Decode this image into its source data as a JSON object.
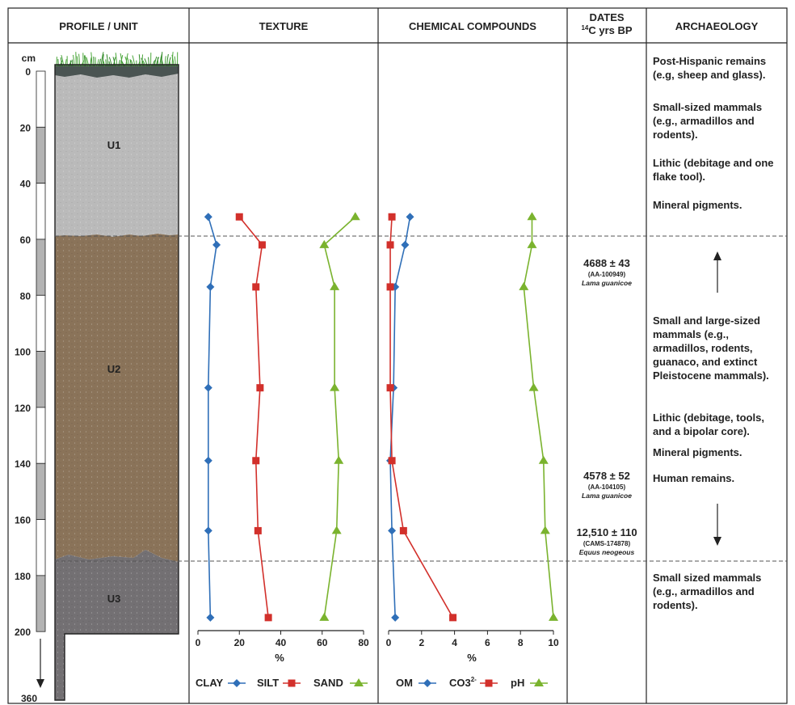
{
  "headers": {
    "profile": "PROFILE / UNIT",
    "texture": "TEXTURE",
    "chemical": "CHEMICAL COMPOUNDS",
    "dates_line1": "DATES",
    "dates_line2_sup": "14",
    "dates_line2": "C yrs BP",
    "archaeology": "ARCHAEOLOGY"
  },
  "depth_scale": {
    "unit": "cm",
    "ticks": [
      "0",
      "20",
      "40",
      "60",
      "80",
      "100",
      "120",
      "140",
      "160",
      "180",
      "200"
    ],
    "bottom_label": "360"
  },
  "units": [
    "U1",
    "U2",
    "U3"
  ],
  "colors": {
    "clay": "#2f6fb8",
    "silt": "#d2302b",
    "sand": "#7ab32e",
    "u1": "#b9b9b9",
    "u2": "#8a7359",
    "u3": "#737073",
    "topsoil": "#4a5452",
    "grass": "#2f8a26"
  },
  "chart_data": [
    {
      "type": "line",
      "title": "TEXTURE",
      "xlabel": "%",
      "xlim": [
        0,
        80
      ],
      "xticks": [
        "0",
        "20",
        "40",
        "60",
        "80"
      ],
      "y_axis": "depth (cm)",
      "depths": [
        52,
        62,
        77,
        113,
        139,
        164,
        195
      ],
      "series": [
        {
          "name": "CLAY",
          "marker": "diamond",
          "values": [
            5,
            9,
            6,
            5,
            5,
            5,
            6
          ]
        },
        {
          "name": "SILT",
          "marker": "square",
          "values": [
            20,
            31,
            28,
            30,
            28,
            29,
            34
          ]
        },
        {
          "name": "SAND",
          "marker": "triangle",
          "values": [
            76,
            61,
            66,
            66,
            68,
            67,
            61
          ]
        }
      ]
    },
    {
      "type": "line",
      "title": "CHEMICAL COMPOUNDS",
      "xlabel": "%",
      "xlim": [
        0,
        10
      ],
      "xticks": [
        "0",
        "2",
        "4",
        "6",
        "8",
        "10"
      ],
      "y_axis": "depth (cm)",
      "depths": [
        52,
        62,
        77,
        113,
        139,
        164,
        195
      ],
      "series": [
        {
          "name": "OM",
          "marker": "diamond",
          "values": [
            1.3,
            1.0,
            0.4,
            0.3,
            0.1,
            0.2,
            0.4
          ]
        },
        {
          "name": "CO3",
          "name_sup": "2-",
          "marker": "square",
          "values": [
            0.2,
            0.1,
            0.1,
            0.1,
            0.2,
            0.9,
            3.9
          ]
        },
        {
          "name": "pH",
          "marker": "triangle",
          "values": [
            8.7,
            8.7,
            8.2,
            8.8,
            9.4,
            9.5,
            10.0
          ]
        }
      ]
    }
  ],
  "dates": [
    {
      "value": "4688 ± 43",
      "lab": "(AA-100949)",
      "taxon": "Lama guanicoe"
    },
    {
      "value": "4578 ± 52",
      "lab": "(AA-104105)",
      "taxon": "Lama guanicoe"
    },
    {
      "value": "12,510 ± 110",
      "lab": "(CAMS-174878)",
      "taxon": "Equus neogeous"
    }
  ],
  "archaeology": {
    "u1": [
      [
        "Post-Hispanic remains",
        "(e.g, sheep and glass)."
      ],
      [
        "Small-sized mammals",
        "(e.g., armadillos and",
        "rodents)."
      ],
      [
        "Lithic (debitage and one",
        "flake tool)."
      ],
      [
        "Mineral pigments."
      ]
    ],
    "u2": [
      [
        "Small and large-sized",
        "mammals (e.g.,",
        "armadillos, rodents,",
        "guanaco, and extinct",
        "Pleistocene mammals)."
      ],
      [
        "Lithic (debitage, tools,",
        "and a bipolar core)."
      ],
      [
        "Mineral pigments."
      ],
      [
        "Human remains."
      ]
    ],
    "u3": [
      [
        "Small sized mammals",
        "(e.g., armadillos and",
        "rodents)."
      ]
    ]
  }
}
